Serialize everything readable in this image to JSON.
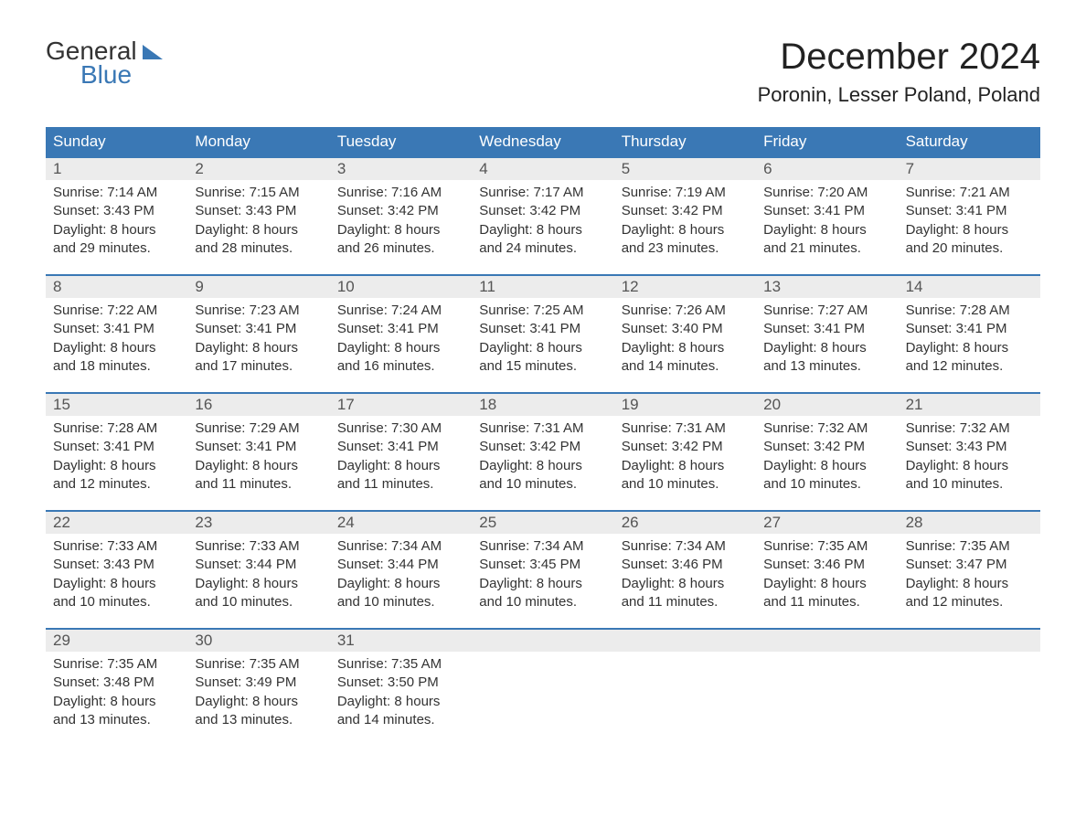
{
  "brand": {
    "word1": "General",
    "word2": "Blue"
  },
  "title": "December 2024",
  "subtitle": "Poronin, Lesser Poland, Poland",
  "colors": {
    "header_bg": "#3a78b5",
    "header_text": "#ffffff",
    "daynum_bg": "#ececec",
    "daynum_text": "#555555",
    "body_text": "#333333",
    "rule": "#3a78b5",
    "brand_blue": "#3a78b5"
  },
  "typography": {
    "title_fontsize": 40,
    "subtitle_fontsize": 22,
    "dow_fontsize": 17,
    "daynum_fontsize": 17,
    "body_fontsize": 15,
    "font_family": "Arial"
  },
  "dow": [
    "Sunday",
    "Monday",
    "Tuesday",
    "Wednesday",
    "Thursday",
    "Friday",
    "Saturday"
  ],
  "weeks": [
    [
      {
        "n": "1",
        "sr": "7:14 AM",
        "ss": "3:43 PM",
        "dh": "8",
        "dm": "29"
      },
      {
        "n": "2",
        "sr": "7:15 AM",
        "ss": "3:43 PM",
        "dh": "8",
        "dm": "28"
      },
      {
        "n": "3",
        "sr": "7:16 AM",
        "ss": "3:42 PM",
        "dh": "8",
        "dm": "26"
      },
      {
        "n": "4",
        "sr": "7:17 AM",
        "ss": "3:42 PM",
        "dh": "8",
        "dm": "24"
      },
      {
        "n": "5",
        "sr": "7:19 AM",
        "ss": "3:42 PM",
        "dh": "8",
        "dm": "23"
      },
      {
        "n": "6",
        "sr": "7:20 AM",
        "ss": "3:41 PM",
        "dh": "8",
        "dm": "21"
      },
      {
        "n": "7",
        "sr": "7:21 AM",
        "ss": "3:41 PM",
        "dh": "8",
        "dm": "20"
      }
    ],
    [
      {
        "n": "8",
        "sr": "7:22 AM",
        "ss": "3:41 PM",
        "dh": "8",
        "dm": "18"
      },
      {
        "n": "9",
        "sr": "7:23 AM",
        "ss": "3:41 PM",
        "dh": "8",
        "dm": "17"
      },
      {
        "n": "10",
        "sr": "7:24 AM",
        "ss": "3:41 PM",
        "dh": "8",
        "dm": "16"
      },
      {
        "n": "11",
        "sr": "7:25 AM",
        "ss": "3:41 PM",
        "dh": "8",
        "dm": "15"
      },
      {
        "n": "12",
        "sr": "7:26 AM",
        "ss": "3:40 PM",
        "dh": "8",
        "dm": "14"
      },
      {
        "n": "13",
        "sr": "7:27 AM",
        "ss": "3:41 PM",
        "dh": "8",
        "dm": "13"
      },
      {
        "n": "14",
        "sr": "7:28 AM",
        "ss": "3:41 PM",
        "dh": "8",
        "dm": "12"
      }
    ],
    [
      {
        "n": "15",
        "sr": "7:28 AM",
        "ss": "3:41 PM",
        "dh": "8",
        "dm": "12"
      },
      {
        "n": "16",
        "sr": "7:29 AM",
        "ss": "3:41 PM",
        "dh": "8",
        "dm": "11"
      },
      {
        "n": "17",
        "sr": "7:30 AM",
        "ss": "3:41 PM",
        "dh": "8",
        "dm": "11"
      },
      {
        "n": "18",
        "sr": "7:31 AM",
        "ss": "3:42 PM",
        "dh": "8",
        "dm": "10"
      },
      {
        "n": "19",
        "sr": "7:31 AM",
        "ss": "3:42 PM",
        "dh": "8",
        "dm": "10"
      },
      {
        "n": "20",
        "sr": "7:32 AM",
        "ss": "3:42 PM",
        "dh": "8",
        "dm": "10"
      },
      {
        "n": "21",
        "sr": "7:32 AM",
        "ss": "3:43 PM",
        "dh": "8",
        "dm": "10"
      }
    ],
    [
      {
        "n": "22",
        "sr": "7:33 AM",
        "ss": "3:43 PM",
        "dh": "8",
        "dm": "10"
      },
      {
        "n": "23",
        "sr": "7:33 AM",
        "ss": "3:44 PM",
        "dh": "8",
        "dm": "10"
      },
      {
        "n": "24",
        "sr": "7:34 AM",
        "ss": "3:44 PM",
        "dh": "8",
        "dm": "10"
      },
      {
        "n": "25",
        "sr": "7:34 AM",
        "ss": "3:45 PM",
        "dh": "8",
        "dm": "10"
      },
      {
        "n": "26",
        "sr": "7:34 AM",
        "ss": "3:46 PM",
        "dh": "8",
        "dm": "11"
      },
      {
        "n": "27",
        "sr": "7:35 AM",
        "ss": "3:46 PM",
        "dh": "8",
        "dm": "11"
      },
      {
        "n": "28",
        "sr": "7:35 AM",
        "ss": "3:47 PM",
        "dh": "8",
        "dm": "12"
      }
    ],
    [
      {
        "n": "29",
        "sr": "7:35 AM",
        "ss": "3:48 PM",
        "dh": "8",
        "dm": "13"
      },
      {
        "n": "30",
        "sr": "7:35 AM",
        "ss": "3:49 PM",
        "dh": "8",
        "dm": "13"
      },
      {
        "n": "31",
        "sr": "7:35 AM",
        "ss": "3:50 PM",
        "dh": "8",
        "dm": "14"
      },
      null,
      null,
      null,
      null
    ]
  ],
  "labels": {
    "sunrise": "Sunrise: ",
    "sunset": "Sunset: ",
    "daylight1": "Daylight: ",
    "daylight_hours": " hours",
    "daylight_and": "and ",
    "daylight_minutes": " minutes."
  }
}
